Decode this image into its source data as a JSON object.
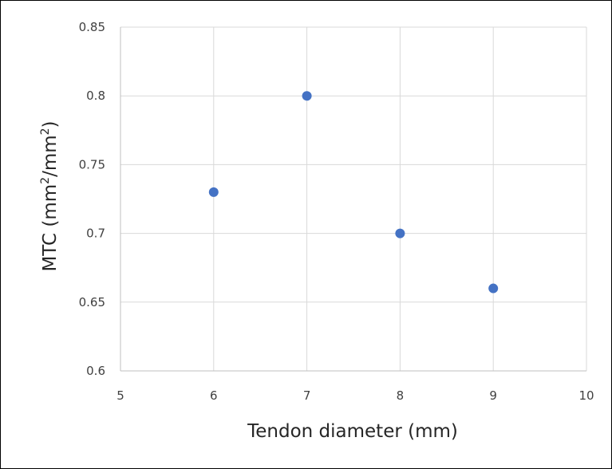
{
  "chart_data": {
    "type": "scatter",
    "xlabel": "Tendon diameter (mm)",
    "ylabel": {
      "prefix": "MTC (mm",
      "sup1": "2",
      "mid": "/mm",
      "sup2": "2",
      "suffix": ")"
    },
    "xlim": [
      5,
      10
    ],
    "ylim": [
      0.6,
      0.85
    ],
    "x_ticks": [
      5,
      6,
      7,
      8,
      9,
      10
    ],
    "y_ticks": [
      0.6,
      0.65,
      0.7,
      0.75,
      0.8,
      0.85
    ],
    "x_tick_labels": [
      "5",
      "6",
      "7",
      "8",
      "9",
      "10"
    ],
    "y_tick_labels": [
      "0.6",
      "0.65",
      "0.7",
      "0.75",
      "0.8",
      "0.85"
    ],
    "grid": true,
    "legend": "none",
    "marker_color": "#4472C4",
    "series": [
      {
        "x": [
          6,
          7,
          8,
          9
        ],
        "y": [
          0.73,
          0.8,
          0.7,
          0.66
        ]
      }
    ]
  }
}
